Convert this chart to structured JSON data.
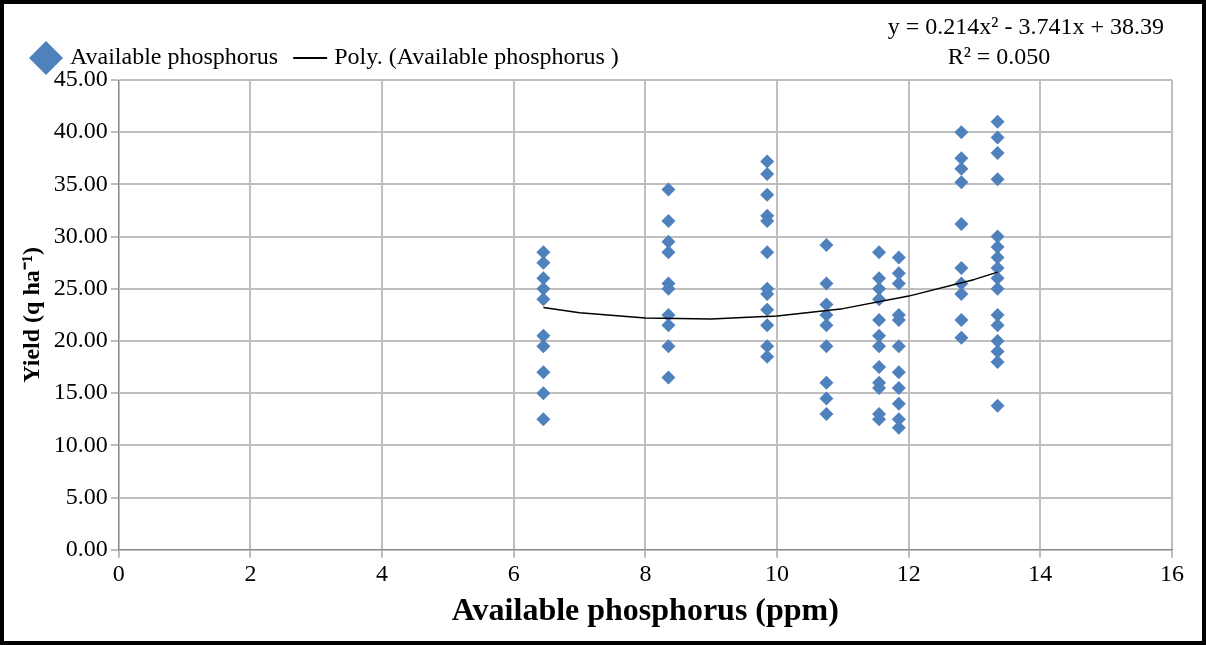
{
  "chart_data": {
    "type": "scatter",
    "xlabel": "Available phosphorus (ppm)",
    "ylabel": "Yield (q ha⁻¹)",
    "annotations": [
      "y = 0.214x² - 3.741x + 38.39",
      "R² = 0.050"
    ],
    "xlim": [
      0,
      16
    ],
    "xticks": [
      0,
      2,
      4,
      6,
      8,
      10,
      12,
      14,
      16
    ],
    "ylim": [
      0,
      45
    ],
    "yticks": [
      {
        "value": 0,
        "label": "0.00"
      },
      {
        "value": 5,
        "label": "5.00"
      },
      {
        "value": 10,
        "label": "10.00"
      },
      {
        "value": 15,
        "label": "15.00"
      },
      {
        "value": 20,
        "label": "20.00"
      },
      {
        "value": 25,
        "label": "25.00"
      },
      {
        "value": 30,
        "label": "30.00"
      },
      {
        "value": 35,
        "label": "35.00"
      },
      {
        "value": 40,
        "label": "40.00"
      },
      {
        "value": 45,
        "label": "45.00"
      }
    ],
    "grid": true,
    "legend": "top left",
    "marker": "diamond",
    "series": [
      {
        "name": "Available phosphorus",
        "color": "#4f81bd",
        "x": [
          6.45,
          6.45,
          6.45,
          6.45,
          6.45,
          6.45,
          6.45,
          6.45,
          6.45,
          6.45,
          8.35,
          8.35,
          8.35,
          8.35,
          8.35,
          8.35,
          8.35,
          8.35,
          8.35,
          8.35,
          9.85,
          9.85,
          9.85,
          9.85,
          9.85,
          9.85,
          9.85,
          9.85,
          9.85,
          9.85,
          9.85,
          9.85,
          10.75,
          10.75,
          10.75,
          10.75,
          10.75,
          10.75,
          10.75,
          10.75,
          10.75,
          11.55,
          11.55,
          11.55,
          11.55,
          11.55,
          11.55,
          11.55,
          11.55,
          11.55,
          11.55,
          11.55,
          11.55,
          11.85,
          11.85,
          11.85,
          11.85,
          11.85,
          11.85,
          11.85,
          11.85,
          11.85,
          11.85,
          11.85,
          12.8,
          12.8,
          12.8,
          12.8,
          12.8,
          12.8,
          12.8,
          12.8,
          12.8,
          12.8,
          13.35,
          13.35,
          13.35,
          13.35,
          13.35,
          13.35,
          13.35,
          13.35,
          13.35,
          13.35,
          13.35,
          13.35,
          13.35,
          13.35,
          13.35,
          13.35
        ],
        "values": [
          28.5,
          27.5,
          26,
          25,
          24,
          20.5,
          19.5,
          17,
          15,
          12.5,
          34.5,
          31.5,
          29.5,
          28.5,
          25.5,
          25,
          22.5,
          21.5,
          19.5,
          16.5,
          37.2,
          36,
          34,
          32,
          31.5,
          28.5,
          25,
          24.5,
          23,
          21.5,
          19.5,
          18.5,
          29.2,
          25.5,
          23.5,
          22.5,
          21.5,
          19.5,
          16,
          14.5,
          13,
          28.5,
          26,
          25,
          24,
          22,
          20.5,
          19.5,
          17.5,
          16,
          15.5,
          13,
          12.5,
          28,
          26.5,
          25.5,
          22.5,
          22,
          19.5,
          17,
          15.5,
          14,
          12.5,
          11.7,
          40,
          37.5,
          36.5,
          35.2,
          31.2,
          27,
          25.5,
          24.5,
          22,
          20.3,
          41,
          39.5,
          38,
          35.5,
          30,
          29,
          28,
          27,
          26,
          25,
          22.5,
          21.5,
          20,
          19,
          18,
          13.8
        ]
      },
      {
        "name": "Poly. (Available phosphorus )",
        "type": "line",
        "color": "#000000",
        "marker": "none",
        "line_style": "solid",
        "x": [
          6.45,
          7,
          8,
          9,
          10,
          11,
          12,
          13,
          13.35
        ],
        "values": [
          23.2,
          22.7,
          22.2,
          22.1,
          22.4,
          23.1,
          24.3,
          25.9,
          26.6
        ]
      }
    ]
  }
}
